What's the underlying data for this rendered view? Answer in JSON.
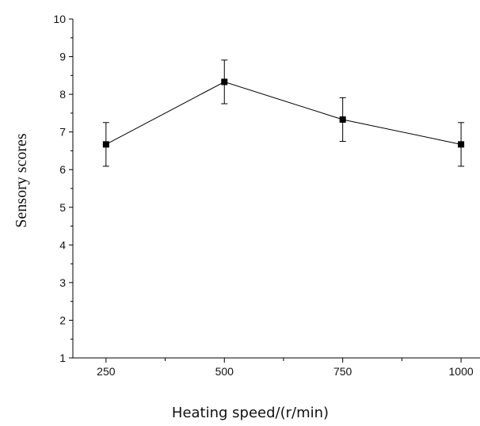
{
  "chart_data": {
    "type": "line",
    "title": "",
    "xlabel": "Heating speed/(r/min)",
    "ylabel": "Sensory scores",
    "x": [
      250,
      500,
      750,
      1000
    ],
    "x_tick_labels": [
      "250",
      "500",
      "750",
      "1000"
    ],
    "y_tick_labels": [
      "1",
      "2",
      "3",
      "4",
      "5",
      "6",
      "7",
      "8",
      "9",
      "10"
    ],
    "ylim": [
      1,
      10
    ],
    "xlim": [
      180,
      1040
    ],
    "grid": false,
    "legend": "none",
    "series": [
      {
        "values": [
          6.67,
          8.33,
          7.33,
          6.67
        ],
        "error": [
          0.58,
          0.58,
          0.58,
          0.58
        ],
        "marker": "square",
        "color": "#000000"
      }
    ]
  }
}
